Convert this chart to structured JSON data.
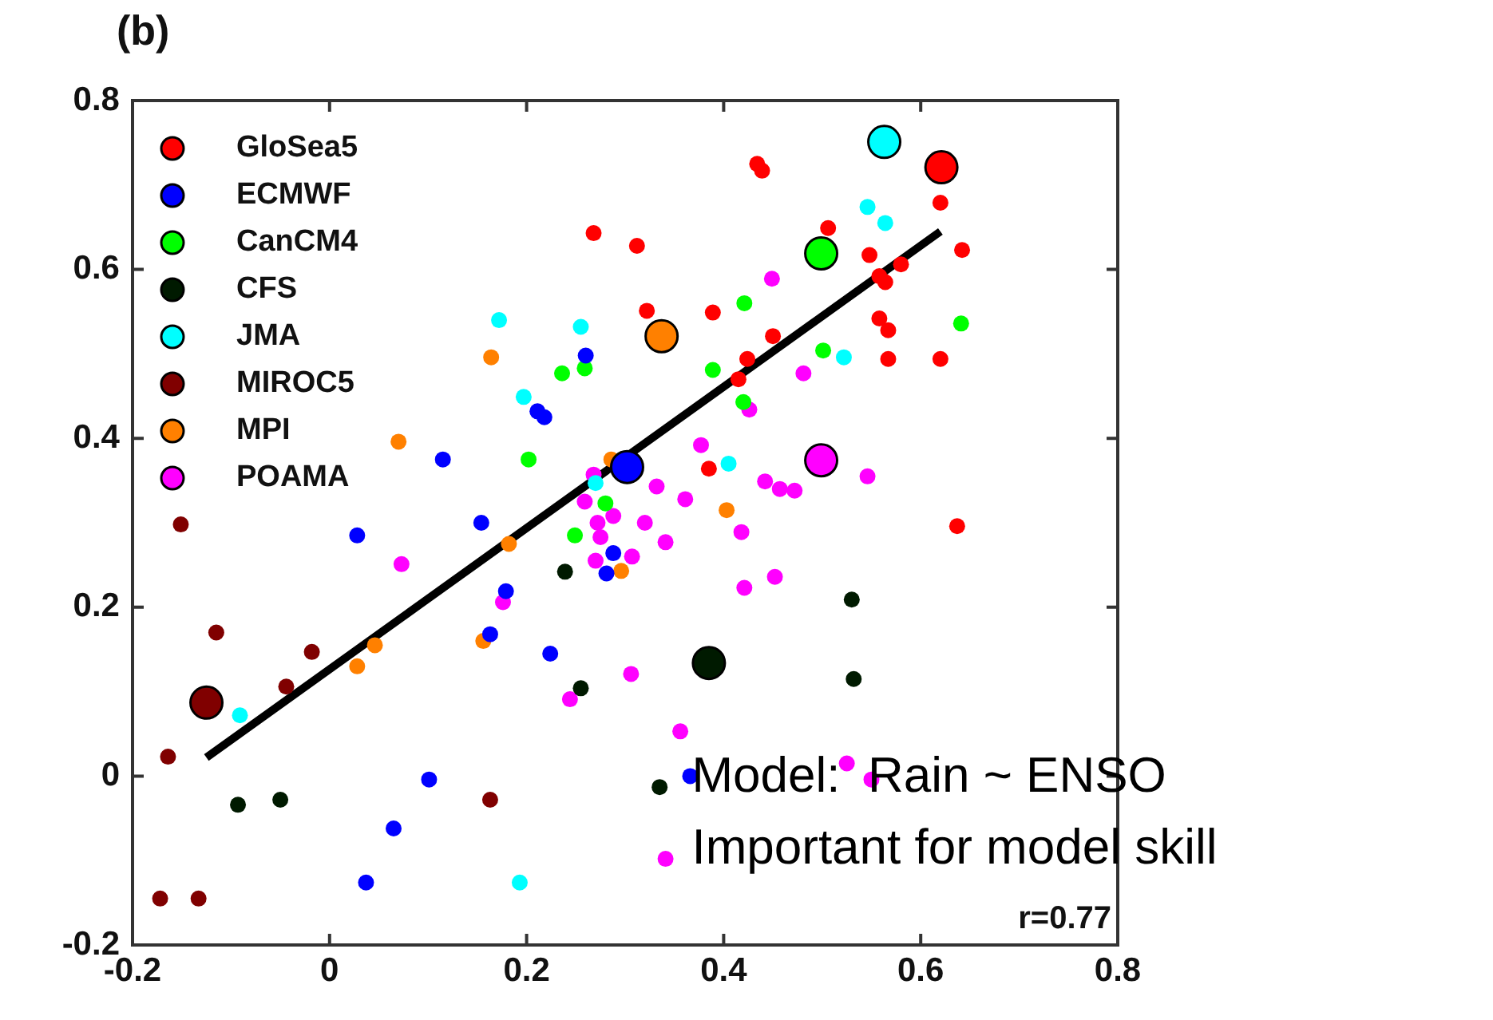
{
  "chart_data": {
    "type": "scatter",
    "title": "(b)",
    "xlim": [
      -0.2,
      0.8
    ],
    "ylim": [
      -0.2,
      0.8
    ],
    "xticks": [
      -0.2,
      0,
      0.2,
      0.4,
      0.6,
      0.8
    ],
    "yticks": [
      -0.2,
      0,
      0.2,
      0.4,
      0.6,
      0.8
    ],
    "legend": "top left",
    "marker": "circle",
    "grid": false,
    "annotations": [
      "r=0.77",
      "Model:  Rain ~ ENSO",
      "Important for model skill"
    ],
    "series": [
      {
        "name": "GloSea5",
        "color": "#ff0000",
        "x": [
          0.434,
          0.439,
          0.268,
          0.312,
          0.506,
          0.548,
          0.62,
          0.642,
          0.58,
          0.558,
          0.564,
          0.322,
          0.389,
          0.45,
          0.424,
          0.415,
          0.558,
          0.567,
          0.567,
          0.62,
          0.385,
          0.637
        ],
        "values": [
          0.725,
          0.717,
          0.643,
          0.628,
          0.649,
          0.617,
          0.679,
          0.623,
          0.606,
          0.592,
          0.585,
          0.551,
          0.549,
          0.521,
          0.494,
          0.47,
          0.542,
          0.528,
          0.494,
          0.494,
          0.364,
          0.296
        ]
      },
      {
        "name": "ECMWF",
        "color": "#0000ff",
        "x": [
          0.211,
          0.218,
          0.115,
          0.154,
          0.028,
          0.26,
          0.179,
          0.163,
          0.224,
          0.101,
          0.065,
          0.037,
          0.288,
          0.281,
          0.366
        ],
        "values": [
          0.432,
          0.425,
          0.375,
          0.3,
          0.285,
          0.498,
          0.219,
          0.168,
          0.145,
          -0.004,
          -0.062,
          -0.126,
          0.264,
          0.24,
          0.0
        ]
      },
      {
        "name": "CanCM4",
        "color": "#00ff00",
        "x": [
          0.421,
          0.236,
          0.259,
          0.389,
          0.501,
          0.42,
          0.641,
          0.28,
          0.249,
          0.202
        ],
        "values": [
          0.56,
          0.477,
          0.483,
          0.481,
          0.504,
          0.443,
          0.536,
          0.323,
          0.285,
          0.375
        ]
      },
      {
        "name": "CFS",
        "color": "#001a00",
        "x": [
          -0.093,
          -0.05,
          0.239,
          0.53,
          0.532,
          0.255,
          0.335
        ],
        "values": [
          -0.034,
          -0.028,
          0.242,
          0.209,
          0.115,
          0.104,
          -0.013
        ]
      },
      {
        "name": "JMA",
        "color": "#00ffff",
        "x": [
          0.546,
          0.564,
          0.255,
          0.522,
          0.405,
          0.172,
          0.197,
          -0.091,
          0.193,
          0.27
        ],
        "values": [
          0.674,
          0.655,
          0.532,
          0.496,
          0.37,
          0.54,
          0.449,
          0.072,
          -0.126,
          0.347
        ]
      },
      {
        "name": "MIROC5",
        "color": "#800000",
        "x": [
          -0.151,
          -0.115,
          -0.018,
          -0.044,
          -0.164,
          -0.172,
          -0.133,
          0.163
        ],
        "values": [
          0.298,
          0.17,
          0.147,
          0.106,
          0.023,
          -0.145,
          -0.145,
          -0.028
        ]
      },
      {
        "name": "MPI",
        "color": "#ff8000",
        "x": [
          0.164,
          0.07,
          0.286,
          0.403,
          0.028,
          0.046,
          0.156,
          0.182,
          0.296
        ],
        "values": [
          0.496,
          0.396,
          0.375,
          0.315,
          0.13,
          0.155,
          0.16,
          0.275,
          0.243
        ]
      },
      {
        "name": "POAMA",
        "color": "#ff00ff",
        "x": [
          0.449,
          0.481,
          0.426,
          0.377,
          0.268,
          0.332,
          0.361,
          0.442,
          0.457,
          0.472,
          0.546,
          0.259,
          0.288,
          0.272,
          0.32,
          0.418,
          0.275,
          0.341,
          0.307,
          0.27,
          0.421,
          0.452,
          0.306,
          0.244,
          0.356,
          0.525,
          0.55,
          0.341,
          0.073,
          0.176
        ],
        "values": [
          0.589,
          0.477,
          0.434,
          0.392,
          0.357,
          0.343,
          0.328,
          0.349,
          0.34,
          0.338,
          0.355,
          0.325,
          0.308,
          0.3,
          0.3,
          0.289,
          0.283,
          0.277,
          0.26,
          0.255,
          0.223,
          0.236,
          0.121,
          0.091,
          0.053,
          0.015,
          -0.004,
          -0.098,
          0.251,
          0.206
        ]
      },
      {
        "type": "line",
        "marker": "none",
        "color": "#000000",
        "x": [
          -0.125,
          0.62
        ],
        "values": [
          0.022,
          0.645
        ]
      },
      {
        "type": "bubble",
        "color": "#ff0000",
        "x": [
          0.621
        ],
        "values": [
          0.721
        ],
        "sizes": [
          1
        ]
      },
      {
        "type": "bubble",
        "color": "#0000ff",
        "x": [
          0.302
        ],
        "values": [
          0.366
        ],
        "sizes": [
          1
        ]
      },
      {
        "type": "bubble",
        "color": "#00ff00",
        "x": [
          0.499
        ],
        "values": [
          0.619
        ],
        "sizes": [
          1
        ]
      },
      {
        "type": "bubble",
        "color": "#001a00",
        "x": [
          0.385
        ],
        "values": [
          0.134
        ],
        "sizes": [
          1
        ]
      },
      {
        "type": "bubble",
        "color": "#00ffff",
        "x": [
          0.563
        ],
        "values": [
          0.751
        ],
        "sizes": [
          1
        ]
      },
      {
        "type": "bubble",
        "color": "#800000",
        "x": [
          -0.125
        ],
        "values": [
          0.087
        ],
        "sizes": [
          1
        ]
      },
      {
        "type": "bubble",
        "color": "#ff8000",
        "x": [
          0.337
        ],
        "values": [
          0.521
        ],
        "sizes": [
          1
        ]
      },
      {
        "type": "bubble",
        "color": "#ff00ff",
        "x": [
          0.499
        ],
        "values": [
          0.374
        ],
        "sizes": [
          1
        ]
      }
    ]
  }
}
